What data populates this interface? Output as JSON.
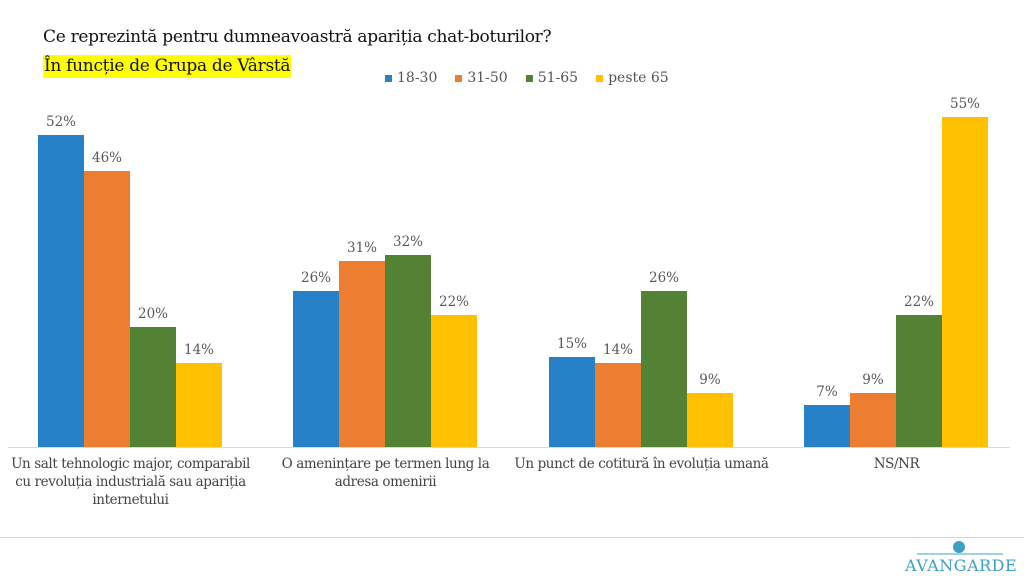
{
  "header": {
    "title": "Ce reprezintă pentru dumneavoastră apariția chat-boturilor?",
    "subtitle": "În funcție de Grupa de Vârstă"
  },
  "legend": [
    {
      "label": "18-30",
      "color": "#2781c8"
    },
    {
      "label": "31-50",
      "color": "#ed7d31"
    },
    {
      "label": "51-65",
      "color": "#548235"
    },
    {
      "label": "peste 65",
      "color": "#ffc000"
    }
  ],
  "categories": [
    {
      "label": "Un salt tehnologic major, comparabil cu revoluția industrială sau apariția internetului"
    },
    {
      "label": "O amenințare pe termen lung la adresa omenirii"
    },
    {
      "label": "Un punct de cotitură în evoluția umană"
    },
    {
      "label": "NS/NR"
    }
  ],
  "bars": [
    [
      {
        "value": 52,
        "label": "52%"
      },
      {
        "value": 46,
        "label": "46%"
      },
      {
        "value": 20,
        "label": "20%"
      },
      {
        "value": 14,
        "label": "14%"
      }
    ],
    [
      {
        "value": 26,
        "label": "26%"
      },
      {
        "value": 31,
        "label": "31%"
      },
      {
        "value": 32,
        "label": "32%"
      },
      {
        "value": 22,
        "label": "22%"
      }
    ],
    [
      {
        "value": 15,
        "label": "15%"
      },
      {
        "value": 14,
        "label": "14%"
      },
      {
        "value": 26,
        "label": "26%"
      },
      {
        "value": 9,
        "label": "9%"
      }
    ],
    [
      {
        "value": 7,
        "label": "7%"
      },
      {
        "value": 9,
        "label": "9%"
      },
      {
        "value": 22,
        "label": "22%"
      },
      {
        "value": 55,
        "label": "55%"
      }
    ]
  ],
  "footer": {
    "logo_text": "AVANGARDE"
  },
  "chart_data": {
    "type": "bar",
    "title": "Ce reprezintă pentru dumneavoastră apariția chat-boturilor?",
    "subtitle": "În funcție de Grupa de Vârstă",
    "categories": [
      "Un salt tehnologic major, comparabil cu revoluția industrială sau apariția internetului",
      "O amenințare pe termen lung la adresa omenirii",
      "Un punct de cotitură în evoluția umană",
      "NS/NR"
    ],
    "series": [
      {
        "name": "18-30",
        "color": "#2781c8",
        "values": [
          52,
          26,
          15,
          7
        ]
      },
      {
        "name": "31-50",
        "color": "#ed7d31",
        "values": [
          46,
          31,
          14,
          9
        ]
      },
      {
        "name": "51-65",
        "color": "#548235",
        "values": [
          20,
          32,
          26,
          22
        ]
      },
      {
        "name": "peste 65",
        "color": "#ffc000",
        "values": [
          14,
          22,
          9,
          55
        ]
      }
    ],
    "xlabel": "",
    "ylabel": "",
    "value_format": "percent",
    "data_labels": true,
    "grid": false,
    "y_axis_visible": false,
    "legend_position": "top",
    "ylim": [
      0,
      60
    ]
  }
}
